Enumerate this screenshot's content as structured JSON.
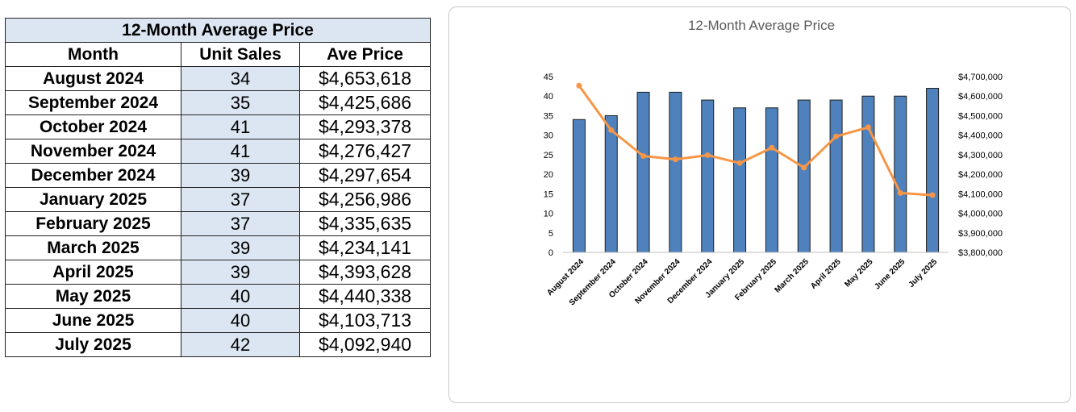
{
  "table": {
    "title": "12-Month Average Price",
    "headers": {
      "month": "Month",
      "units": "Unit Sales",
      "price": "Ave Price"
    },
    "rows": [
      {
        "month": "August 2024",
        "units": "34",
        "price": "$4,653,618"
      },
      {
        "month": "September 2024",
        "units": "35",
        "price": "$4,425,686"
      },
      {
        "month": "October 2024",
        "units": "41",
        "price": "$4,293,378"
      },
      {
        "month": "November 2024",
        "units": "41",
        "price": "$4,276,427"
      },
      {
        "month": "December 2024",
        "units": "39",
        "price": "$4,297,654"
      },
      {
        "month": "January 2025",
        "units": "37",
        "price": "$4,256,986"
      },
      {
        "month": "February 2025",
        "units": "37",
        "price": "$4,335,635"
      },
      {
        "month": "March 2025",
        "units": "39",
        "price": "$4,234,141"
      },
      {
        "month": "April 2025",
        "units": "39",
        "price": "$4,393,628"
      },
      {
        "month": "May 2025",
        "units": "40",
        "price": "$4,440,338"
      },
      {
        "month": "June 2025",
        "units": "40",
        "price": "$4,103,713"
      },
      {
        "month": "July 2025",
        "units": "42",
        "price": "$4,092,940"
      }
    ]
  },
  "chart_data": {
    "type": "bar",
    "title": "12-Month Average Price",
    "categories": [
      "August 2024",
      "September 2024",
      "October 2024",
      "November 2024",
      "December 2024",
      "January 2025",
      "February 2025",
      "March 2025",
      "April 2025",
      "May 2025",
      "June 2025",
      "July 2025"
    ],
    "series": [
      {
        "type": "bar",
        "axis": "left",
        "color": "#4f81bd",
        "values": [
          34,
          35,
          41,
          41,
          39,
          37,
          37,
          39,
          39,
          40,
          40,
          42
        ]
      },
      {
        "type": "line",
        "axis": "right",
        "color": "#f79646",
        "values": [
          4653618,
          4425686,
          4293378,
          4276427,
          4297654,
          4256986,
          4335635,
          4234141,
          4393628,
          4440338,
          4103713,
          4092940
        ]
      }
    ],
    "ylim_left": [
      0,
      45
    ],
    "yticks_left": [
      "0",
      "5",
      "10",
      "15",
      "20",
      "25",
      "30",
      "35",
      "40",
      "45"
    ],
    "ylim_right": [
      3800000,
      4700000
    ],
    "yticks_right": [
      "$3,800,000",
      "$3,900,000",
      "$4,000,000",
      "$4,100,000",
      "$4,200,000",
      "$4,300,000",
      "$4,400,000",
      "$4,500,000",
      "$4,600,000",
      "$4,700,000"
    ],
    "grid": false,
    "legend": "none"
  }
}
